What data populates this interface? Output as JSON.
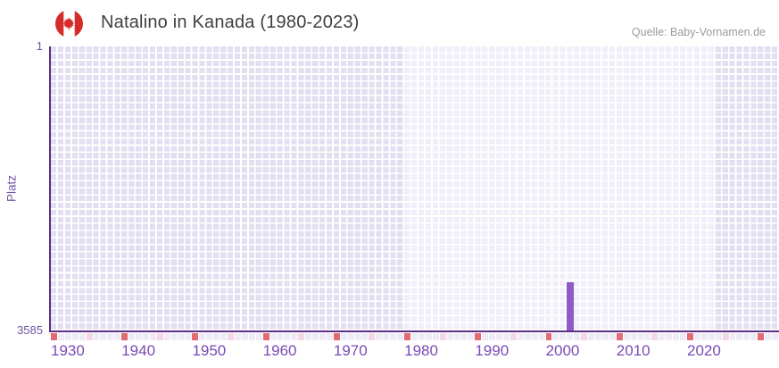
{
  "header": {
    "title": "Natalino in Kanada (1980-2023)",
    "source": "Quelle: Baby-Vornamen.de",
    "flag": "canada-flag-icon"
  },
  "chart_data": {
    "type": "bar",
    "title": "Natalino in Kanada (1980-2023)",
    "xlabel": "",
    "ylabel": "Platz",
    "y_axis": {
      "min": 1,
      "max": 3585,
      "inverted": true,
      "tick_top": "1",
      "tick_bottom": "3585"
    },
    "x_axis": {
      "start_year": 1930,
      "end_year": 2033,
      "tick_years": [
        1930,
        1940,
        1950,
        1960,
        1970,
        1980,
        1990,
        2000,
        2010,
        2020
      ]
    },
    "highlight_range": {
      "from": 1980,
      "to": 2024
    },
    "bars": [
      {
        "year": 2003,
        "rank": 2980
      }
    ],
    "strip_ticks": {
      "decade_interval": 10,
      "half_interval": 5
    },
    "grid": true,
    "legend": false
  },
  "colors": {
    "title_color": "#3f3f3f",
    "source_color": "#9b9b9b",
    "plot_bg": "#e3def0",
    "highlight_bg": "#f1eef9",
    "grid_color": "#ffffff",
    "axis_color": "#5b2d87",
    "bar_color": "#8e5ac6",
    "xlabel_color": "#7c49b5",
    "ytick_color": "#6f55a5",
    "tick_red": "#e16b70",
    "tick_pink": "#f3d8e1",
    "tick_base": "#eeebf6",
    "flag_red": "#d52b2b",
    "flag_white": "#ffffff"
  }
}
